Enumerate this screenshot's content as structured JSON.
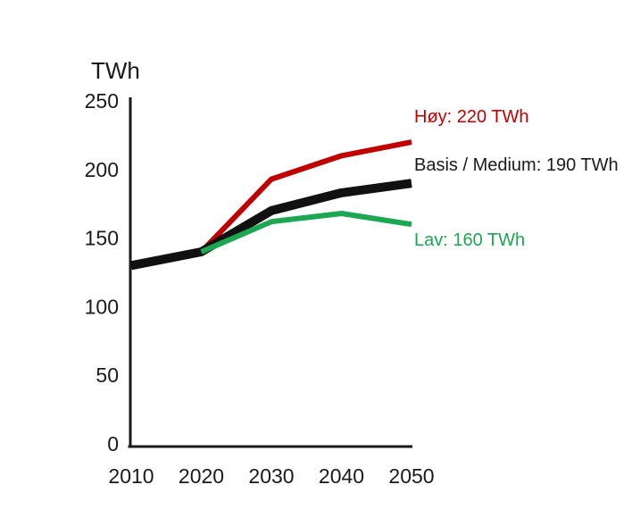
{
  "title": "TWh",
  "colors": {
    "axis": "#1a1a1a",
    "hoy_red": "#C00000",
    "basis_black": "#111111",
    "lav_green": "#1CA752"
  },
  "chart_data": {
    "type": "line",
    "title": "TWh",
    "xlabel": "",
    "ylabel": "TWh",
    "x": [
      2010,
      2020,
      2030,
      2040,
      2050
    ],
    "x_ticks": [
      "2010",
      "2020",
      "2030",
      "2040",
      "2050"
    ],
    "y_ticks": [
      0,
      50,
      100,
      150,
      200,
      250
    ],
    "ylim": [
      0,
      250
    ],
    "grid": false,
    "legend_position": "right-annotations",
    "series": [
      {
        "name": "Høy",
        "color": "#C00000",
        "stroke_width": 6,
        "values": [
          null,
          140,
          193,
          210,
          220
        ]
      },
      {
        "name": "Basis / Medium",
        "color": "#111111",
        "stroke_width": 10,
        "values": [
          130,
          140,
          170,
          183,
          190
        ]
      },
      {
        "name": "Lav",
        "color": "#1CA752",
        "stroke_width": 6,
        "values": [
          null,
          140,
          162,
          168,
          160
        ]
      }
    ],
    "annotations": [
      {
        "text": "Høy: 220 TWh",
        "color": "#C00000",
        "x": 464,
        "y": 137
      },
      {
        "text": "Basis / Medium: 190 TWh",
        "color": "#1a1a1a",
        "x": 464,
        "y": 191
      },
      {
        "text": "Lav: 160 TWh",
        "color": "#1CA752",
        "x": 464,
        "y": 275
      }
    ]
  }
}
